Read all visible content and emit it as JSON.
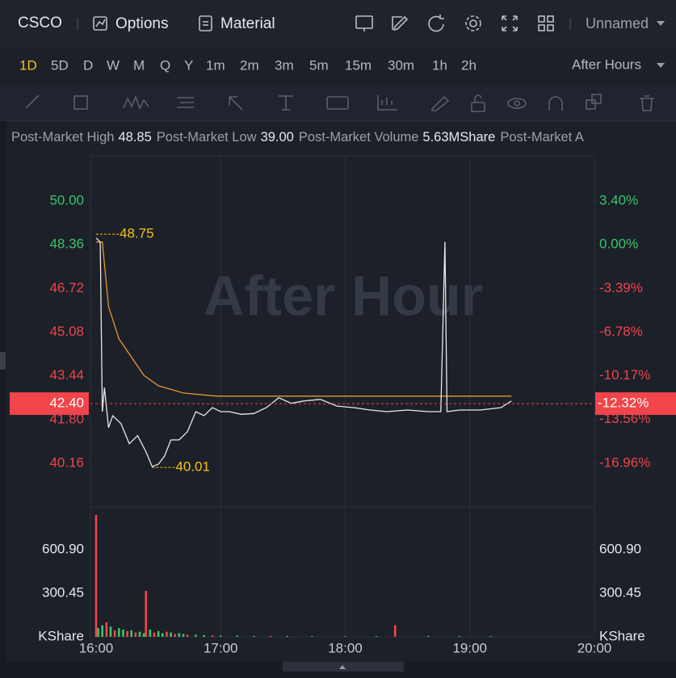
{
  "toolbar": {
    "symbol": "CSCO",
    "options": "Options",
    "material": "Material",
    "layout": "Unnamed"
  },
  "timeframes": {
    "items": [
      "1D",
      "5D",
      "D",
      "W",
      "M",
      "Q",
      "Y",
      "1m",
      "2m",
      "3m",
      "5m",
      "15m",
      "30m",
      "1h",
      "2h"
    ],
    "active": 0,
    "session": "After Hours"
  },
  "info": [
    {
      "label": "Post-Market High",
      "value": "48.85"
    },
    {
      "label": "Post-Market Low",
      "value": "39.00"
    },
    {
      "label": "Post-Market Volume",
      "value": "5.63MShare"
    },
    {
      "label": "Post-Market A"
    }
  ],
  "chart_data": [
    {
      "type": "line",
      "watermark": "After Hour",
      "xlim": [
        960,
        1200
      ],
      "xticks": [
        {
          "value": 960,
          "label": "16:00"
        },
        {
          "value": 1020,
          "label": "17:00"
        },
        {
          "value": 1080,
          "label": "18:00"
        },
        {
          "value": 1140,
          "label": "19:00"
        },
        {
          "value": 1200,
          "label": "20:00"
        }
      ],
      "ylim": [
        38.53,
        51.69
      ],
      "yticks": [
        {
          "value": 50,
          "label": "50.00"
        },
        {
          "value": 48.36,
          "label": "48.36"
        },
        {
          "value": 46.72,
          "label": "46.72"
        },
        {
          "value": 45.08,
          "label": "45.08"
        },
        {
          "value": 43.44,
          "label": "43.44"
        },
        {
          "value": 41.8,
          "label": "41.80"
        },
        {
          "value": 40.16,
          "label": "40.16"
        }
      ],
      "y2lim": [
        -20.34,
        6.9
      ],
      "y2ticks": [
        {
          "value": 3.4,
          "label": "3.40%"
        },
        {
          "value": 0,
          "label": "0.00%"
        },
        {
          "value": -3.39,
          "label": "-3.39%"
        },
        {
          "value": -6.78,
          "label": "-6.78%"
        },
        {
          "value": -10.17,
          "label": "-10.17%"
        },
        {
          "value": -13.56,
          "label": "-13.56%"
        },
        {
          "value": -16.96,
          "label": "-16.96%"
        }
      ],
      "series": [
        {
          "color": "#e8e8e8",
          "x": [
            960,
            962,
            963,
            964,
            966,
            968,
            972,
            976,
            980,
            984,
            987,
            990,
            993,
            996,
            1000,
            1004,
            1008,
            1012,
            1016,
            1020,
            1024,
            1030,
            1036,
            1042,
            1048,
            1054,
            1060,
            1068,
            1076,
            1084,
            1092,
            1100,
            1110,
            1120,
            1126,
            1128,
            1129,
            1135,
            1145,
            1155,
            1160
          ],
          "values": [
            48.61,
            48.46,
            42.1,
            43.0,
            41.5,
            41.95,
            41.65,
            40.9,
            41.2,
            40.6,
            40.04,
            40.13,
            40.44,
            41.04,
            41.04,
            41.35,
            42.1,
            41.95,
            42.25,
            42.1,
            42.1,
            42.0,
            42.03,
            42.25,
            42.62,
            42.41,
            42.5,
            42.56,
            42.31,
            42.25,
            42.16,
            42.1,
            42.16,
            42.1,
            42.1,
            48.46,
            42.1,
            42.16,
            42.16,
            42.25,
            42.5
          ]
        },
        {
          "color": "#e8952c",
          "x": [
            960,
            963,
            966,
            971,
            983,
            990,
            1002,
            1018,
            1160
          ],
          "values": [
            48.46,
            48.46,
            46.04,
            44.83,
            43.46,
            43.07,
            42.8,
            42.68,
            42.68
          ]
        }
      ],
      "annotations": [
        {
          "label": "48.75",
          "x": 960,
          "value": 48.75
        },
        {
          "label": "40.01",
          "x": 987,
          "value": 40.01
        }
      ],
      "last_price": {
        "value": 42.4,
        "label": "42.40",
        "change_label": "-12.32%"
      }
    },
    {
      "type": "bar",
      "unit": "KShare",
      "xlim": [
        960,
        1200
      ],
      "ylim": [
        0,
        895.8
      ],
      "yticks": [
        {
          "value": 300.45,
          "label": "300.45"
        },
        {
          "value": 600.9,
          "label": "600.90"
        }
      ],
      "x": [
        960,
        961,
        963,
        965,
        967,
        969,
        971,
        973,
        975,
        977,
        979,
        981,
        983,
        984,
        986,
        988,
        990,
        992,
        994,
        996,
        998,
        1000,
        1002,
        1004,
        1008,
        1012,
        1016,
        1020,
        1028,
        1036,
        1044,
        1052,
        1064,
        1080,
        1095,
        1104,
        1120,
        1135,
        1150
      ],
      "values": [
        840,
        60,
        80,
        100,
        70,
        45,
        60,
        50,
        40,
        45,
        30,
        35,
        25,
        317,
        50,
        30,
        40,
        25,
        35,
        30,
        20,
        25,
        20,
        15,
        15,
        12,
        10,
        8,
        8,
        6,
        6,
        6,
        5,
        5,
        5,
        80,
        6,
        5,
        5
      ],
      "colors": [
        "#f0454a",
        "#3cc46a",
        "#3cc46a",
        "#f0454a",
        "#3cc46a",
        "#f0454a",
        "#3cc46a",
        "#3cc46a",
        "#f0454a",
        "#3cc46a",
        "#f0454a",
        "#3cc46a",
        "#3cc46a",
        "#f0454a",
        "#3cc46a",
        "#f0454a",
        "#3cc46a",
        "#3cc46a",
        "#f0454a",
        "#3cc46a",
        "#f0454a",
        "#3cc46a",
        "#3cc46a",
        "#f0454a",
        "#3cc46a",
        "#3cc46a",
        "#f0454a",
        "#3cc46a",
        "#3cc46a",
        "#3cc46a",
        "#f0454a",
        "#3cc46a",
        "#3cc46a",
        "#f0454a",
        "#3cc46a",
        "#f0454a",
        "#3cc46a",
        "#3cc46a",
        "#3cc46a"
      ]
    }
  ]
}
